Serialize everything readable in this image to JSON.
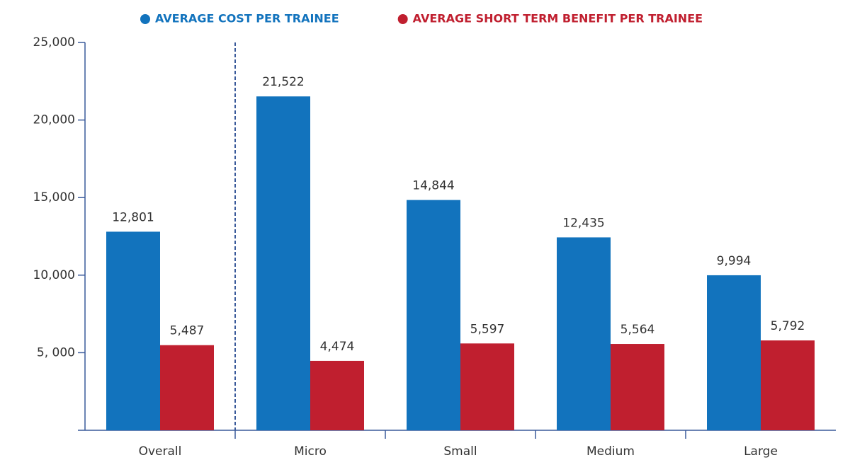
{
  "chart_data": {
    "type": "bar",
    "categories": [
      "Overall",
      "Micro",
      "Small",
      "Medium",
      "Large"
    ],
    "series": [
      {
        "name": "AVERAGE COST PER TRAINEE",
        "color": "#1273bd",
        "values": [
          12801,
          21522,
          14844,
          12435,
          9994
        ],
        "value_labels": [
          "12,801",
          "21,522",
          "14,844",
          "12,435",
          "9,994"
        ]
      },
      {
        "name": "AVERAGE SHORT TERM BENEFIT PER TRAINEE",
        "color": "#c01f2f",
        "values": [
          5487,
          4474,
          5597,
          5564,
          5792
        ],
        "value_labels": [
          "5,487",
          "4,474",
          "5,597",
          "5,564",
          "5,792"
        ]
      }
    ],
    "ylim": [
      0,
      25000
    ],
    "yticks": [
      {
        "value": 5000,
        "label": "5, 000"
      },
      {
        "value": 10000,
        "label": "10,000"
      },
      {
        "value": 15000,
        "label": "15,000"
      },
      {
        "value": 20000,
        "label": "20,000"
      },
      {
        "value": 25000,
        "label": "25,000"
      }
    ],
    "grid": false,
    "legend": "top"
  }
}
